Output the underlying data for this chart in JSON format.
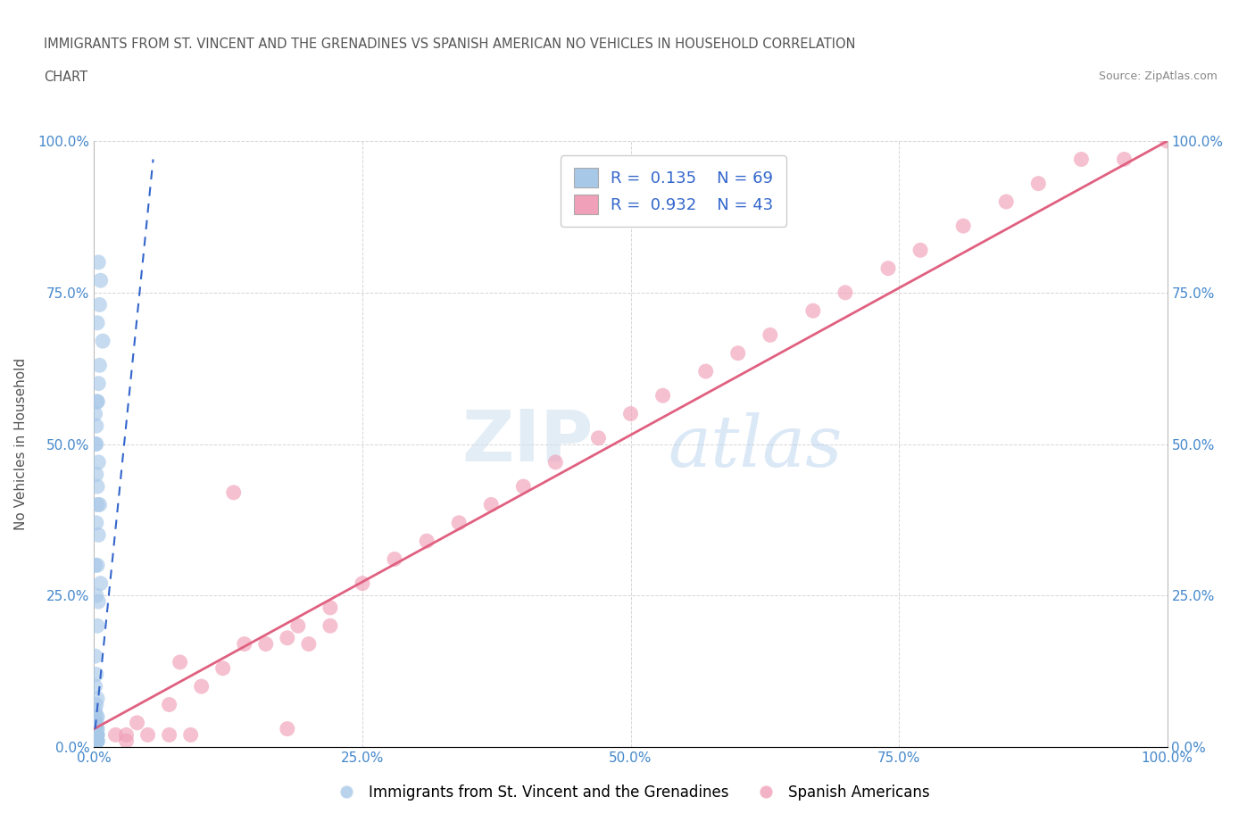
{
  "title_line1": "IMMIGRANTS FROM ST. VINCENT AND THE GRENADINES VS SPANISH AMERICAN NO VEHICLES IN HOUSEHOLD CORRELATION",
  "title_line2": "CHART",
  "source_text": "Source: ZipAtlas.com",
  "ylabel": "No Vehicles in Household",
  "legend_r1": "R =  0.135",
  "legend_n1": "N = 69",
  "legend_r2": "R =  0.932",
  "legend_n2": "N = 43",
  "blue_color": "#a8c8e8",
  "pink_color": "#f0a0b8",
  "blue_line_color": "#3366cc",
  "pink_line_color": "#e06080",
  "watermark_zip": "ZIP",
  "watermark_atlas": "atlas",
  "blue_scatter_x": [
    0.004,
    0.006,
    0.005,
    0.003,
    0.008,
    0.005,
    0.004,
    0.003,
    0.002,
    0.001,
    0.004,
    0.003,
    0.005,
    0.002,
    0.004,
    0.003,
    0.006,
    0.004,
    0.002,
    0.003,
    0.001,
    0.002,
    0.003,
    0.001,
    0.002,
    0.003,
    0.001,
    0.002,
    0.001,
    0.003,
    0.002,
    0.001,
    0.003,
    0.002,
    0.001,
    0.002,
    0.001,
    0.003,
    0.002,
    0.001,
    0.002,
    0.001,
    0.003,
    0.002,
    0.001,
    0.002,
    0.001,
    0.003,
    0.002,
    0.001,
    0.002,
    0.001,
    0.003,
    0.002,
    0.001,
    0.002,
    0.001,
    0.003,
    0.002,
    0.001,
    0.002,
    0.001,
    0.003,
    0.001,
    0.002,
    0.001,
    0.002,
    0.001,
    0.002
  ],
  "blue_scatter_y": [
    0.8,
    0.77,
    0.73,
    0.7,
    0.67,
    0.63,
    0.6,
    0.57,
    0.53,
    0.5,
    0.47,
    0.43,
    0.4,
    0.37,
    0.35,
    0.3,
    0.27,
    0.24,
    0.5,
    0.57,
    0.55,
    0.45,
    0.4,
    0.3,
    0.25,
    0.2,
    0.15,
    0.12,
    0.1,
    0.08,
    0.07,
    0.06,
    0.05,
    0.05,
    0.04,
    0.04,
    0.03,
    0.03,
    0.03,
    0.03,
    0.03,
    0.02,
    0.02,
    0.02,
    0.02,
    0.02,
    0.02,
    0.02,
    0.02,
    0.02,
    0.02,
    0.01,
    0.01,
    0.01,
    0.01,
    0.01,
    0.01,
    0.01,
    0.01,
    0.01,
    0.01,
    0.01,
    0.01,
    0.01,
    0.01,
    0.01,
    0.01,
    0.01,
    0.01
  ],
  "pink_scatter_x": [
    0.02,
    0.04,
    0.07,
    0.1,
    0.12,
    0.16,
    0.19,
    0.22,
    0.25,
    0.28,
    0.31,
    0.34,
    0.37,
    0.4,
    0.43,
    0.47,
    0.5,
    0.53,
    0.57,
    0.6,
    0.63,
    0.67,
    0.7,
    0.74,
    0.77,
    0.81,
    0.85,
    0.88,
    0.92,
    0.96,
    1.0,
    0.13,
    0.2,
    0.18,
    0.08,
    0.22,
    0.09,
    0.14,
    0.05,
    0.07,
    0.03,
    0.03,
    0.18
  ],
  "pink_scatter_y": [
    0.02,
    0.04,
    0.07,
    0.1,
    0.13,
    0.17,
    0.2,
    0.23,
    0.27,
    0.31,
    0.34,
    0.37,
    0.4,
    0.43,
    0.47,
    0.51,
    0.55,
    0.58,
    0.62,
    0.65,
    0.68,
    0.72,
    0.75,
    0.79,
    0.82,
    0.86,
    0.9,
    0.93,
    0.97,
    0.97,
    1.0,
    0.42,
    0.17,
    0.03,
    0.14,
    0.2,
    0.02,
    0.17,
    0.02,
    0.02,
    0.01,
    0.02,
    0.18
  ],
  "pink_line_x0": 0.0,
  "pink_line_y0": 0.03,
  "pink_line_x1": 1.0,
  "pink_line_y1": 1.0,
  "blue_line_x0": 0.001,
  "blue_line_y0": 0.03,
  "blue_line_x1": 0.055,
  "blue_line_y1": 0.97,
  "xlim": [
    0.0,
    1.0
  ],
  "ylim": [
    0.0,
    1.0
  ],
  "xticks": [
    0.0,
    0.25,
    0.5,
    0.75,
    1.0
  ],
  "yticks": [
    0.0,
    0.25,
    0.5,
    0.75,
    1.0
  ],
  "xticklabels": [
    "0.0%",
    "25.0%",
    "50.0%",
    "75.0%",
    "100.0%"
  ],
  "yticklabels": [
    "0.0%",
    "25.0%",
    "50.0%",
    "75.0%",
    "100.0%"
  ],
  "grid_color": "#cccccc",
  "background_color": "#ffffff",
  "title_color": "#555555",
  "axis_label_color": "#555555",
  "tick_color": "#4488cc"
}
